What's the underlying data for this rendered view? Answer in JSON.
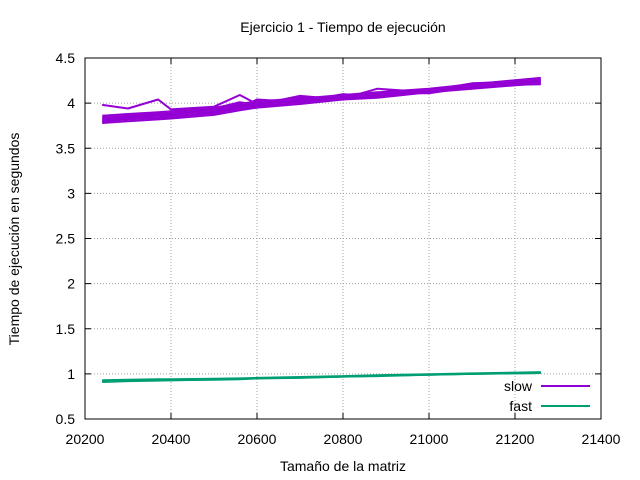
{
  "chart_data": {
    "type": "line",
    "title": "Ejercicio 1 - Tiempo de ejecución",
    "xlabel": "Tamaño de la matriz",
    "ylabel": "Tiempo de ejecución en segundos",
    "xlim": [
      20200,
      21400
    ],
    "ylim": [
      0.5,
      4.5
    ],
    "xticks": [
      20200,
      20400,
      20600,
      20800,
      21000,
      21200,
      21400
    ],
    "xtick_labels": [
      "20200",
      "20400",
      "20600",
      "20800",
      "21000",
      "21200",
      "21400"
    ],
    "yticks": [
      0.5,
      1,
      1.5,
      2,
      2.5,
      3,
      3.5,
      4,
      4.5
    ],
    "ytick_labels": [
      "0.5",
      "1",
      "1.5",
      "2",
      "2.5",
      "3",
      "3.5",
      "4",
      "4.5"
    ],
    "grid": true,
    "grid_style": "dotted",
    "legend_position": "bottom-right",
    "x": [
      20240,
      20300,
      20370,
      20400,
      20500,
      20560,
      20600,
      20700,
      20800,
      20880,
      21000,
      21100,
      21260
    ],
    "series": [
      {
        "name": "slow",
        "color": "#9400d3",
        "runs": [
          [
            3.78,
            3.8,
            3.82,
            3.83,
            3.87,
            3.92,
            3.95,
            3.99,
            4.04,
            4.06,
            4.12,
            4.16,
            4.22
          ],
          [
            3.8,
            3.82,
            3.84,
            3.85,
            3.89,
            3.94,
            3.97,
            4.0,
            4.05,
            4.08,
            4.13,
            4.17,
            4.23
          ],
          [
            3.82,
            3.84,
            3.86,
            3.87,
            3.91,
            3.96,
            3.99,
            4.02,
            4.06,
            4.09,
            4.14,
            4.18,
            4.24
          ],
          [
            3.84,
            3.86,
            3.88,
            3.89,
            3.93,
            3.97,
            4.0,
            4.03,
            4.07,
            4.1,
            4.15,
            4.2,
            4.26
          ],
          [
            3.86,
            3.88,
            3.9,
            3.91,
            3.95,
            3.99,
            4.02,
            4.05,
            4.09,
            4.12,
            4.16,
            4.21,
            4.28
          ],
          [
            3.98,
            3.94,
            4.04,
            3.93,
            3.96,
            4.09,
            3.99,
            4.06,
            4.05,
            4.16,
            4.12,
            4.19,
            4.21
          ],
          [
            3.81,
            3.85,
            3.83,
            3.9,
            3.9,
            3.95,
            4.04,
            4.01,
            4.1,
            4.07,
            4.14,
            4.22,
            4.25
          ],
          [
            3.79,
            3.83,
            3.87,
            3.86,
            3.94,
            4.01,
            3.98,
            4.08,
            4.04,
            4.11,
            4.11,
            4.18,
            4.27
          ]
        ]
      },
      {
        "name": "fast",
        "color": "#009e73",
        "runs": [
          [
            0.92,
            0.925,
            0.93,
            0.93,
            0.94,
            0.945,
            0.95,
            0.96,
            0.97,
            0.98,
            0.99,
            1.0,
            1.01
          ],
          [
            0.93,
            0.935,
            0.94,
            0.94,
            0.945,
            0.95,
            0.955,
            0.965,
            0.975,
            0.985,
            0.995,
            1.005,
            1.02
          ],
          [
            0.91,
            0.92,
            0.925,
            0.93,
            0.935,
            0.94,
            0.95,
            0.955,
            0.97,
            0.975,
            0.99,
            1.0,
            1.01
          ]
        ]
      }
    ]
  }
}
